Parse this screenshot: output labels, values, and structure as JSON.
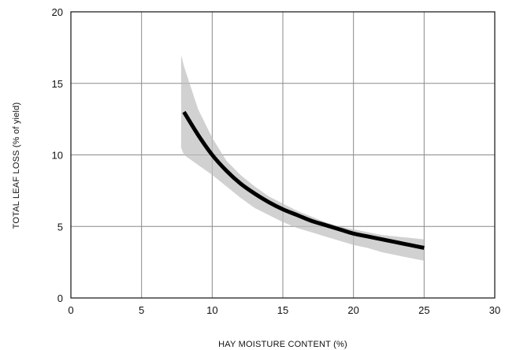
{
  "chart_data": {
    "type": "line",
    "title": "",
    "xlabel": "HAY MOISTURE CONTENT (%)",
    "ylabel": "TOTAL LEAF LOSS (% of yield)",
    "xlim": [
      0,
      30
    ],
    "ylim": [
      0,
      20
    ],
    "xticks": [
      "0",
      "5",
      "10",
      "15",
      "20",
      "25",
      "30"
    ],
    "yticks": [
      "0",
      "5",
      "10",
      "15",
      "20"
    ],
    "grid": true,
    "legend": "none",
    "series": [
      {
        "x": [
          8,
          9,
          10,
          11,
          12,
          13,
          14,
          15,
          16,
          17,
          18,
          19,
          20,
          21,
          22,
          23,
          24,
          25
        ],
        "y": [
          13.0,
          11.4,
          10.0,
          8.9,
          8.0,
          7.3,
          6.7,
          6.2,
          5.8,
          5.4,
          5.1,
          4.8,
          4.5,
          4.3,
          4.1,
          3.9,
          3.7,
          3.5
        ],
        "color": "#000000"
      }
    ],
    "scatter_band": {
      "x": [
        7.8,
        8,
        9,
        10,
        11,
        12,
        13,
        14,
        15,
        16,
        17,
        18,
        19,
        20,
        21,
        22,
        23,
        24,
        25
      ],
      "low": [
        10.5,
        10.0,
        9.3,
        8.6,
        7.8,
        7.0,
        6.3,
        5.8,
        5.3,
        4.9,
        4.6,
        4.3,
        4.0,
        3.7,
        3.5,
        3.2,
        3.0,
        2.8,
        2.6
      ],
      "high": [
        17.0,
        16.2,
        13.2,
        11.2,
        9.6,
        8.6,
        7.8,
        7.1,
        6.6,
        6.1,
        5.7,
        5.3,
        5.0,
        4.8,
        4.6,
        4.4,
        4.3,
        4.2,
        4.1
      ],
      "color": "#bdbdbd"
    }
  }
}
